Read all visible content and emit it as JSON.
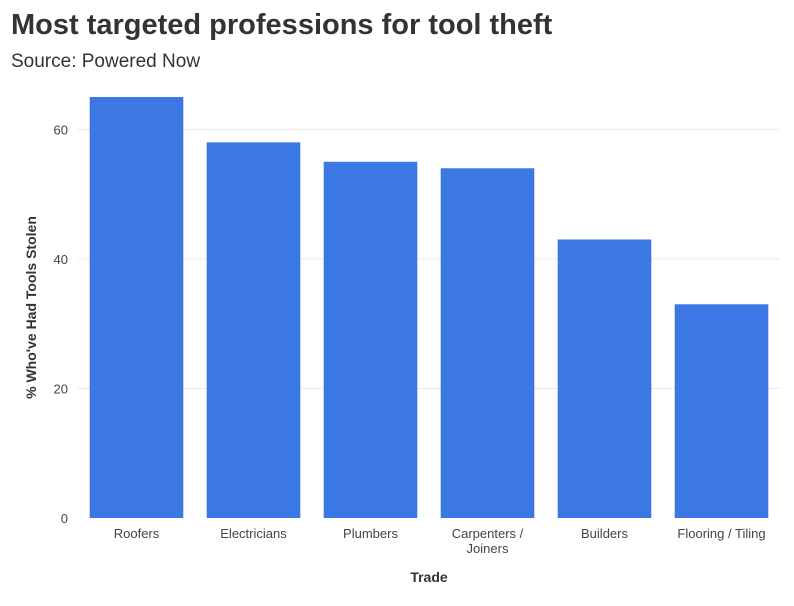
{
  "header": {
    "title": "Most targeted professions for tool theft",
    "subtitle": "Source: Powered Now"
  },
  "chart_data": {
    "type": "bar",
    "categories": [
      "Roofers",
      "Electricians",
      "Plumbers",
      "Carpenters / Joiners",
      "Builders",
      "Flooring / Tiling"
    ],
    "category_lines": [
      [
        "Roofers"
      ],
      [
        "Electricians"
      ],
      [
        "Plumbers"
      ],
      [
        "Carpenters /",
        "Joiners"
      ],
      [
        "Builders"
      ],
      [
        "Flooring / Tiling"
      ]
    ],
    "values": [
      65,
      58,
      55,
      54,
      43,
      33
    ],
    "xlabel": "Trade",
    "ylabel": "% Who've Had Tools Stolen",
    "ylim": [
      0,
      65
    ],
    "yticks": [
      0,
      20,
      40,
      60
    ],
    "grid": true,
    "bar_color": "#3c78e4"
  }
}
